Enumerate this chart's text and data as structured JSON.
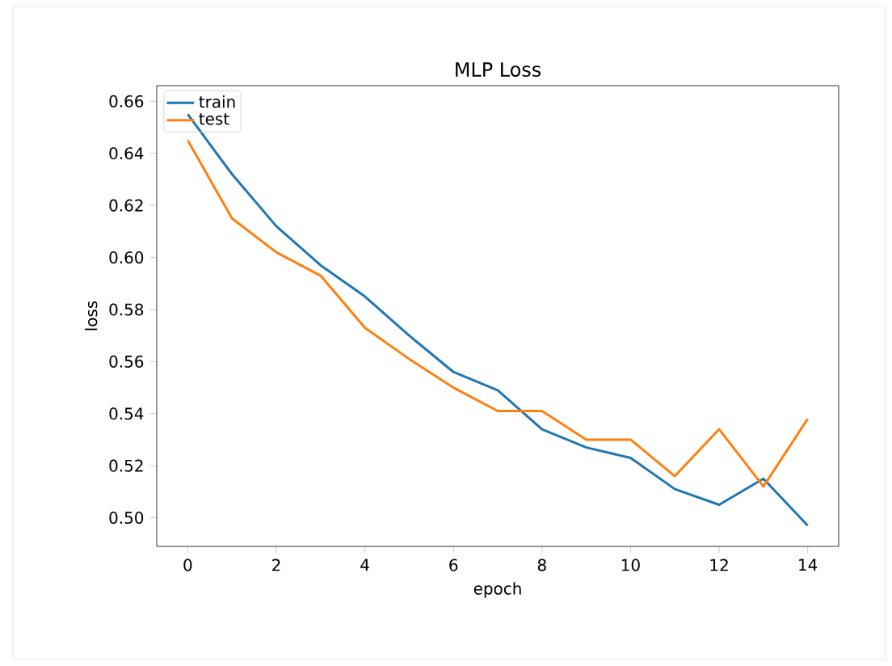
{
  "chart_data": {
    "type": "line",
    "title": "MLP Loss",
    "xlabel": "epoch",
    "ylabel": "loss",
    "x": [
      0,
      1,
      2,
      3,
      4,
      5,
      6,
      7,
      8,
      9,
      10,
      11,
      12,
      13,
      14
    ],
    "series": [
      {
        "name": "train",
        "color": "#1f77b4",
        "values": [
          0.655,
          0.632,
          0.612,
          0.597,
          0.585,
          0.57,
          0.556,
          0.549,
          0.534,
          0.527,
          0.523,
          0.511,
          0.505,
          0.515,
          0.497
        ]
      },
      {
        "name": "test",
        "color": "#ff7f0e",
        "values": [
          0.645,
          0.615,
          0.602,
          0.593,
          0.573,
          0.561,
          0.55,
          0.541,
          0.541,
          0.53,
          0.53,
          0.516,
          0.534,
          0.512,
          0.538
        ]
      }
    ],
    "xlim": [
      -0.7,
      14.7
    ],
    "ylim": [
      0.489,
      0.666
    ],
    "xticks": [
      0,
      2,
      4,
      6,
      8,
      10,
      12,
      14
    ],
    "yticks": [
      {
        "value": 0.5,
        "label": "0.50"
      },
      0.52,
      0.54,
      0.56,
      0.58,
      {
        "value": 0.6,
        "label": "0.60"
      },
      0.62,
      0.64,
      0.66
    ],
    "legend": "top left",
    "grid": false,
    "marker": "none",
    "line_style": "solid"
  }
}
